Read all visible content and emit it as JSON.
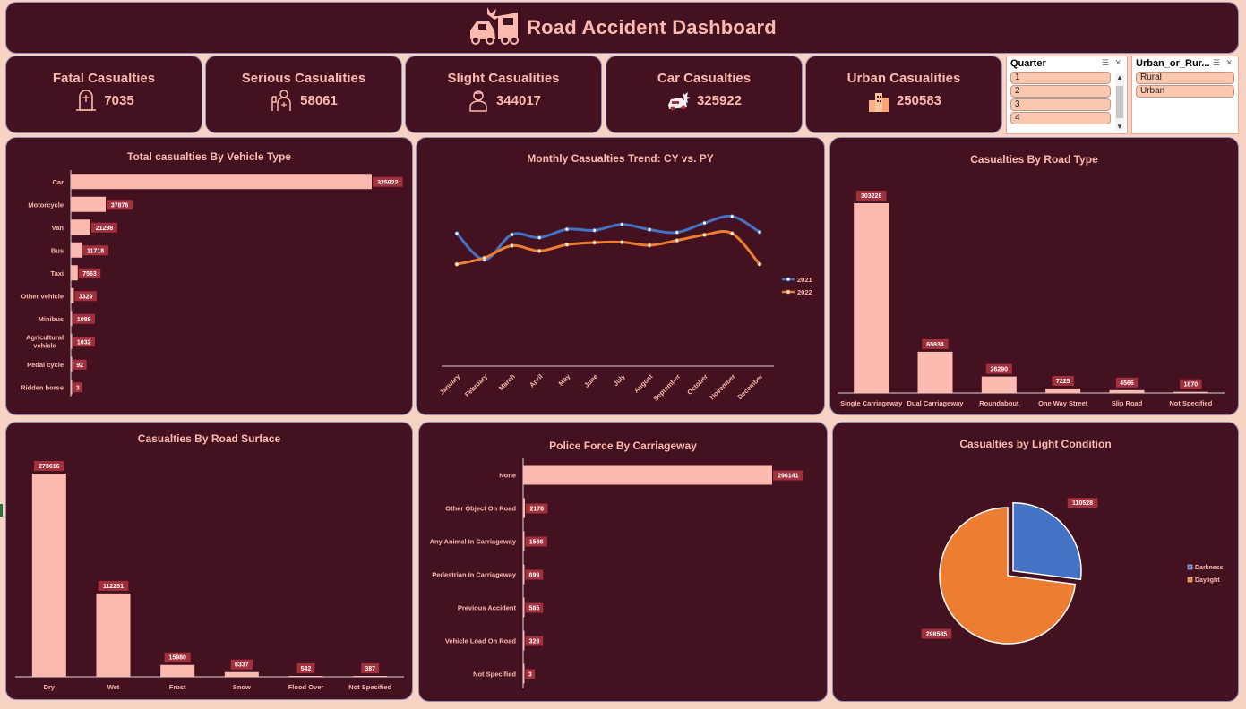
{
  "header": {
    "title": "Road Accident Dashboard"
  },
  "kpis": [
    {
      "label": "Fatal Casualties",
      "value": "7035",
      "icon": "grave-icon"
    },
    {
      "label": "Serious Casualities",
      "value": "58061",
      "icon": "injured-person-icon"
    },
    {
      "label": "Slight Casualities",
      "value": "344017",
      "icon": "person-icon"
    },
    {
      "label": "Car Casualties",
      "value": "325922",
      "icon": "car-crash-icon"
    },
    {
      "label": "Urban Casualities",
      "value": "250583",
      "icon": "city-icon"
    }
  ],
  "slicers": {
    "quarter": {
      "title": "Quarter",
      "items": [
        "1",
        "2",
        "3",
        "4"
      ]
    },
    "urban": {
      "title": "Urban_or_Rur...",
      "items": [
        "Rural",
        "Urban"
      ]
    }
  },
  "colors": {
    "panel": "#441120",
    "bar": "#fbb9b0",
    "label": "#a3303d",
    "s2021": "#4472c4",
    "s2022": "#ed7d31"
  },
  "chart_data": [
    {
      "id": "vehicle",
      "type": "bar",
      "orientation": "horizontal",
      "title": "Total casualties By Vehicle Type",
      "categories": [
        "Car",
        "Motorcycle",
        "Van",
        "Bus",
        "Taxi",
        "Other vehicle",
        "Minibus",
        "Agricultural vehicle",
        "Pedal cycle",
        "Ridden horse"
      ],
      "values": [
        325922,
        37876,
        21298,
        11718,
        7563,
        3329,
        1088,
        1032,
        92,
        3
      ]
    },
    {
      "id": "monthly",
      "type": "line",
      "title": "Monthly Casualties Trend: CY vs. PY",
      "categories": [
        "January",
        "February",
        "March",
        "April",
        "May",
        "June",
        "July",
        "August",
        "September",
        "October",
        "November",
        "December"
      ],
      "series": [
        {
          "name": "2021",
          "values": [
            38000,
            30500,
            37700,
            36800,
            39200,
            38900,
            40600,
            39100,
            38300,
            41000,
            42900,
            38400
          ]
        },
        {
          "name": "2022",
          "values": [
            29200,
            31000,
            34500,
            33000,
            34800,
            35400,
            35500,
            34600,
            36000,
            37600,
            38000,
            29200
          ]
        }
      ],
      "ylim": [
        0,
        50000
      ],
      "legend": "right"
    },
    {
      "id": "roadtype",
      "type": "bar",
      "title": "Casualties By Road Type",
      "categories": [
        "Single Carriageway",
        "Dual Carriageway",
        "Roundabout",
        "One Way Street",
        "Slip Road",
        "Not Specified"
      ],
      "values": [
        303228,
        65934,
        26290,
        7225,
        4566,
        1870
      ]
    },
    {
      "id": "surface",
      "type": "bar",
      "title": "Casualties By Road Surface",
      "categories": [
        "Dry",
        "Wet",
        "Frost",
        "Snow",
        "Flood Over",
        "Not Specified"
      ],
      "values": [
        273616,
        112251,
        15980,
        6337,
        542,
        387
      ]
    },
    {
      "id": "police",
      "type": "bar",
      "orientation": "horizontal",
      "title": "Police Force By Carriageway",
      "categories": [
        "None",
        "Other Object On Road",
        "Any Animal In Carriageway",
        "Pedestrian In Carriageway",
        "Previous Accident",
        "Vehicle Load On Road",
        "Not Specified"
      ],
      "values": [
        296141,
        2178,
        1586,
        699,
        585,
        329,
        3
      ]
    },
    {
      "id": "light",
      "type": "pie",
      "title": "Casualties by Light Condition",
      "categories": [
        "Darkness",
        "Daylight"
      ],
      "values": [
        110528,
        298585
      ],
      "legend": "right"
    }
  ]
}
